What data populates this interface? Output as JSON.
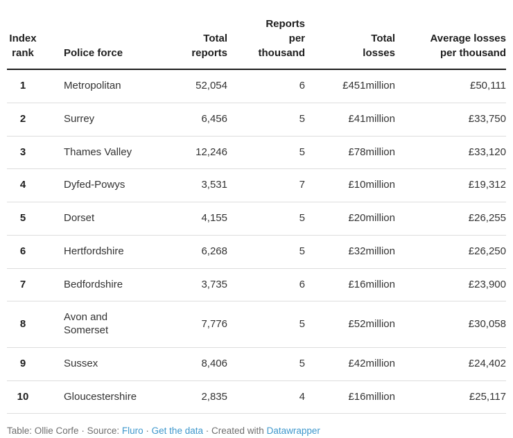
{
  "colors": {
    "header_text": "#1d1d1d",
    "body_text": "#333333",
    "header_border": "#1a1a1a",
    "row_divider": "#dddddd",
    "footer_text": "#6e6e6e",
    "link_blue": "#3d97cc",
    "background": "#ffffff"
  },
  "header": {
    "index_rank": "Index\nrank",
    "police_force": "Police force",
    "total_reports": "Total\nreports",
    "reports_per_thousand": "Reports\nper\nthousand",
    "total_losses": "Total\nlosses",
    "avg_losses_per_thousand": "Average losses\nper thousand"
  },
  "chart_data": {
    "type": "table",
    "columns": [
      "Index rank",
      "Police force",
      "Total reports",
      "Reports per thousand",
      "Total losses",
      "Average losses per thousand"
    ],
    "rows": [
      [
        "1",
        "Metropolitan",
        "52,054",
        "6",
        "£451million",
        "£50,111"
      ],
      [
        "2",
        "Surrey",
        "6,456",
        "5",
        "£41million",
        "£33,750"
      ],
      [
        "3",
        "Thames Valley",
        "12,246",
        "5",
        "£78million",
        "£33,120"
      ],
      [
        "4",
        "Dyfed-Powys",
        "3,531",
        "7",
        "£10million",
        "£19,312"
      ],
      [
        "5",
        "Dorset",
        "4,155",
        "5",
        "£20million",
        "£26,255"
      ],
      [
        "6",
        "Hertfordshire",
        "6,268",
        "5",
        "£32million",
        "£26,250"
      ],
      [
        "7",
        "Bedfordshire",
        "3,735",
        "6",
        "£16million",
        "£23,900"
      ],
      [
        "8",
        "Avon and Somerset",
        "7,776",
        "5",
        "£52million",
        "£30,058"
      ],
      [
        "9",
        "Sussex",
        "8,406",
        "5",
        "£42million",
        "£24,402"
      ],
      [
        "10",
        "Gloucestershire",
        "2,835",
        "4",
        "£16million",
        "£25,117"
      ]
    ]
  },
  "footer": {
    "table_credit": "Table: Ollie Corfe",
    "separator": "·",
    "source_label": "Source:",
    "source_link": "Fluro",
    "get_data_link": "Get the data",
    "created_label": "Created with",
    "created_link": "Datawrapper"
  }
}
